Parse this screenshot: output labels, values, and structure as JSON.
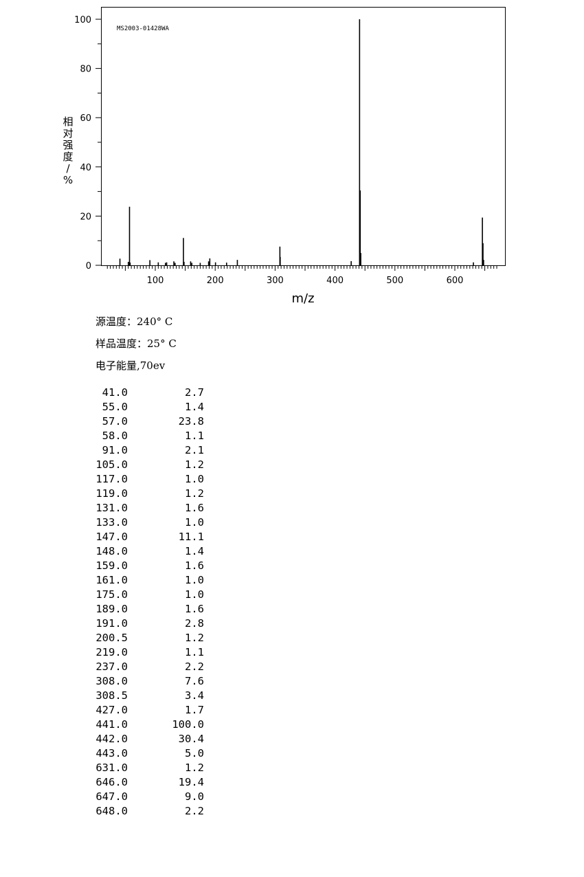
{
  "chart_data": {
    "type": "bar",
    "annotation": "MS2003-01428WA",
    "xlabel": "m/z",
    "ylabel": "相对强度/%",
    "xlim": [
      15,
      685
    ],
    "ylim": [
      0,
      105
    ],
    "x_ticks": [
      100,
      200,
      300,
      400,
      500,
      600
    ],
    "y_ticks": [
      0,
      20,
      40,
      60,
      80,
      100
    ],
    "grid": false,
    "legend": "none",
    "peaks": [
      {
        "mz": "41.0",
        "ab": "2.7"
      },
      {
        "mz": "55.0",
        "ab": "1.4"
      },
      {
        "mz": "57.0",
        "ab": "23.8"
      },
      {
        "mz": "58.0",
        "ab": "1.1"
      },
      {
        "mz": "91.0",
        "ab": "2.1"
      },
      {
        "mz": "105.0",
        "ab": "1.2"
      },
      {
        "mz": "117.0",
        "ab": "1.0"
      },
      {
        "mz": "119.0",
        "ab": "1.2"
      },
      {
        "mz": "131.0",
        "ab": "1.6"
      },
      {
        "mz": "133.0",
        "ab": "1.0"
      },
      {
        "mz": "147.0",
        "ab": "11.1"
      },
      {
        "mz": "148.0",
        "ab": "1.4"
      },
      {
        "mz": "159.0",
        "ab": "1.6"
      },
      {
        "mz": "161.0",
        "ab": "1.0"
      },
      {
        "mz": "175.0",
        "ab": "1.0"
      },
      {
        "mz": "189.0",
        "ab": "1.6"
      },
      {
        "mz": "191.0",
        "ab": "2.8"
      },
      {
        "mz": "200.5",
        "ab": "1.2"
      },
      {
        "mz": "219.0",
        "ab": "1.1"
      },
      {
        "mz": "237.0",
        "ab": "2.2"
      },
      {
        "mz": "308.0",
        "ab": "7.6"
      },
      {
        "mz": "308.5",
        "ab": "3.4"
      },
      {
        "mz": "427.0",
        "ab": "1.7"
      },
      {
        "mz": "441.0",
        "ab": "100.0"
      },
      {
        "mz": "442.0",
        "ab": "30.4"
      },
      {
        "mz": "443.0",
        "ab": "5.0"
      },
      {
        "mz": "631.0",
        "ab": "1.2"
      },
      {
        "mz": "646.0",
        "ab": "19.4"
      },
      {
        "mz": "647.0",
        "ab": "9.0"
      },
      {
        "mz": "648.0",
        "ab": "2.2"
      }
    ]
  },
  "conditions": {
    "source_temp": "源温度：240° C",
    "sample_temp": "样品温度：25° C",
    "electron_energy": "电子能量,70ev"
  }
}
